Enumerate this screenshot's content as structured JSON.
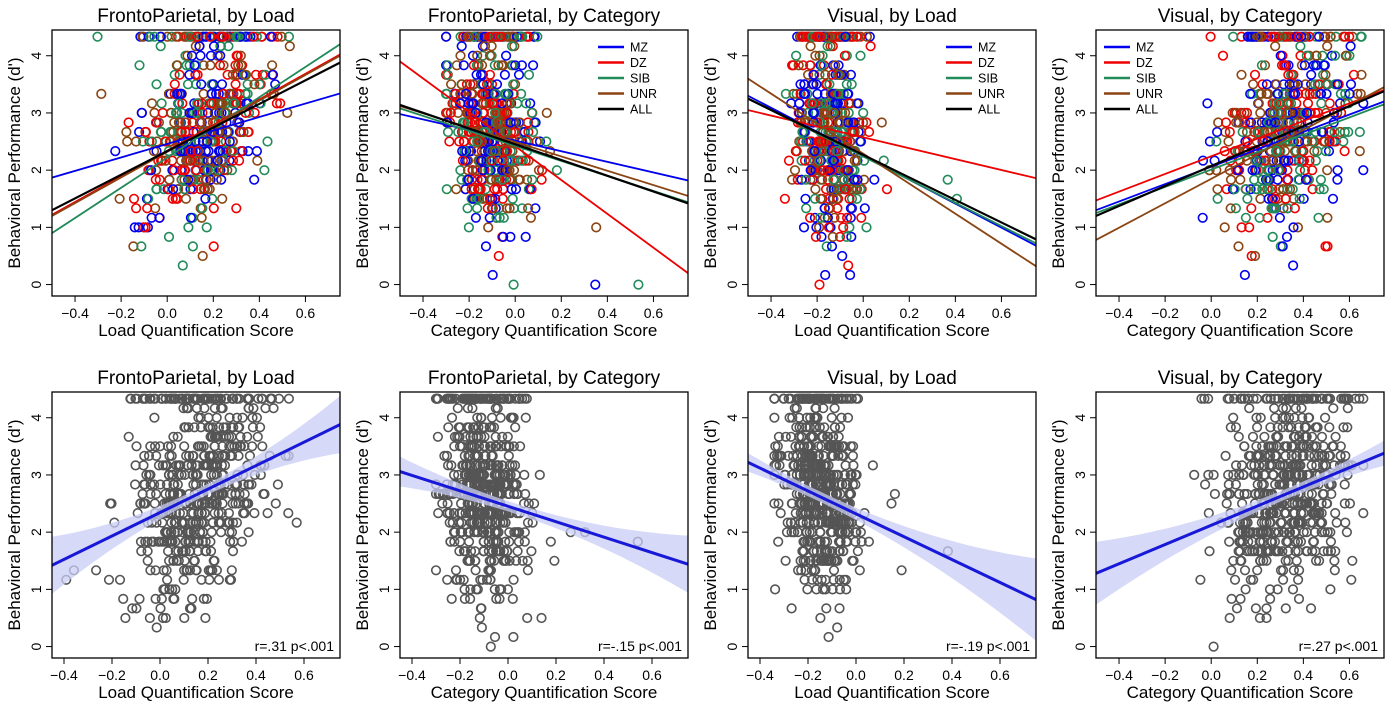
{
  "colors": {
    "MZ": "#0000ee",
    "DZ": "#ee0000",
    "SIB": "#228b5a",
    "UNR": "#8b4513",
    "ALL": "#000000",
    "points_gray": "#555555",
    "fit_line": "#1818d8",
    "ci_band": "#c8ccf4"
  },
  "chart_data": [
    {
      "type": "scatter",
      "row": "top",
      "title": "FrontoParietal, by Load",
      "xlabel": "Load Quantification Score",
      "ylabel": "Behavioral Performance (d')",
      "xlim": [
        -0.5,
        0.75
      ],
      "ylim": [
        -0.2,
        4.45
      ],
      "xticks": [
        -0.4,
        -0.2,
        0.0,
        0.2,
        0.4,
        0.6
      ],
      "yticks": [
        0,
        1,
        2,
        3,
        4
      ],
      "xcenter": 0.15,
      "xspread": 0.14,
      "xmin": -0.42,
      "xmax": 0.58,
      "legend": null,
      "series": [
        {
          "name": "MZ",
          "line": [
            [
              -0.5,
              1.87
            ],
            [
              0.75,
              3.34
            ]
          ]
        },
        {
          "name": "DZ",
          "line": [
            [
              -0.5,
              1.22
            ],
            [
              0.75,
              4.02
            ]
          ]
        },
        {
          "name": "SIB",
          "line": [
            [
              -0.5,
              0.9
            ],
            [
              0.75,
              4.2
            ]
          ]
        },
        {
          "name": "UNR",
          "line": [
            [
              -0.5,
              1.2
            ],
            [
              0.75,
              4.0
            ]
          ]
        },
        {
          "name": "ALL",
          "line": [
            [
              -0.5,
              1.3
            ],
            [
              0.75,
              3.88
            ]
          ]
        }
      ]
    },
    {
      "type": "scatter",
      "row": "top",
      "title": "FrontoParietal, by Category",
      "xlabel": "Category Quantification Score",
      "ylabel": "Behavioral Performance (d')",
      "xlim": [
        -0.5,
        0.75
      ],
      "ylim": [
        -0.2,
        4.45
      ],
      "xticks": [
        -0.4,
        -0.2,
        0.0,
        0.2,
        0.4,
        0.6
      ],
      "yticks": [
        0,
        1,
        2,
        3,
        4
      ],
      "xcenter": -0.1,
      "xspread": 0.09,
      "xmin": -0.3,
      "xmax": 0.57,
      "legend": {
        "position": "top-right",
        "entries": [
          "MZ",
          "DZ",
          "SIB",
          "UNR",
          "ALL"
        ]
      },
      "series": [
        {
          "name": "MZ",
          "line": [
            [
              -0.5,
              2.98
            ],
            [
              0.75,
              1.82
            ]
          ]
        },
        {
          "name": "DZ",
          "line": [
            [
              -0.5,
              3.9
            ],
            [
              0.75,
              0.2
            ]
          ]
        },
        {
          "name": "SIB",
          "line": [
            [
              -0.5,
              3.08
            ],
            [
              0.75,
              1.44
            ]
          ]
        },
        {
          "name": "UNR",
          "line": [
            [
              -0.5,
              3.12
            ],
            [
              0.75,
              1.55
            ]
          ]
        },
        {
          "name": "ALL",
          "line": [
            [
              -0.5,
              3.14
            ],
            [
              0.75,
              1.42
            ]
          ]
        }
      ]
    },
    {
      "type": "scatter",
      "row": "top",
      "title": "Visual, by Load",
      "xlabel": "Load Quantification Score",
      "ylabel": "Behavioral Performance (d')",
      "xlim": [
        -0.5,
        0.75
      ],
      "ylim": [
        -0.2,
        4.45
      ],
      "xticks": [
        -0.4,
        -0.2,
        0.0,
        0.2,
        0.4,
        0.6
      ],
      "yticks": [
        0,
        1,
        2,
        3,
        4
      ],
      "xcenter": -0.15,
      "xspread": 0.08,
      "xmin": -0.34,
      "xmax": 0.42,
      "legend": {
        "position": "top-right",
        "entries": [
          "MZ",
          "DZ",
          "SIB",
          "UNR",
          "ALL"
        ]
      },
      "series": [
        {
          "name": "MZ",
          "line": [
            [
              -0.5,
              3.3
            ],
            [
              0.75,
              0.68
            ]
          ]
        },
        {
          "name": "DZ",
          "line": [
            [
              -0.5,
              3.05
            ],
            [
              0.75,
              1.86
            ]
          ]
        },
        {
          "name": "SIB",
          "line": [
            [
              -0.5,
              3.25
            ],
            [
              0.75,
              0.72
            ]
          ]
        },
        {
          "name": "UNR",
          "line": [
            [
              -0.5,
              3.6
            ],
            [
              0.75,
              0.32
            ]
          ]
        },
        {
          "name": "ALL",
          "line": [
            [
              -0.5,
              3.25
            ],
            [
              0.75,
              0.79
            ]
          ]
        }
      ]
    },
    {
      "type": "scatter",
      "row": "top",
      "title": "Visual, by Category",
      "xlabel": "Category Quantification Score",
      "ylabel": "Behavioral Performance (d')",
      "xlim": [
        -0.5,
        0.75
      ],
      "ylim": [
        -0.2,
        4.45
      ],
      "xticks": [
        -0.4,
        -0.2,
        0.0,
        0.2,
        0.4,
        0.6
      ],
      "yticks": [
        0,
        1,
        2,
        3,
        4
      ],
      "xcenter": 0.32,
      "xspread": 0.14,
      "xmin": -0.2,
      "xmax": 0.66,
      "legend": {
        "position": "top-left",
        "entries": [
          "MZ",
          "DZ",
          "SIB",
          "UNR",
          "ALL"
        ]
      },
      "series": [
        {
          "name": "MZ",
          "line": [
            [
              -0.5,
              1.3
            ],
            [
              0.75,
              3.2
            ]
          ]
        },
        {
          "name": "DZ",
          "line": [
            [
              -0.5,
              1.47
            ],
            [
              0.75,
              3.4
            ]
          ]
        },
        {
          "name": "SIB",
          "line": [
            [
              -0.5,
              1.25
            ],
            [
              0.75,
              3.15
            ]
          ]
        },
        {
          "name": "UNR",
          "line": [
            [
              -0.5,
              0.78
            ],
            [
              0.75,
              3.45
            ]
          ]
        },
        {
          "name": "ALL",
          "line": [
            [
              -0.5,
              1.2
            ],
            [
              0.75,
              3.38
            ]
          ]
        }
      ]
    },
    {
      "type": "scatter",
      "row": "bottom",
      "title": "FrontoParietal, by Load",
      "xlabel": "Load Quantification Score",
      "ylabel": "Behavioral Performance (d')",
      "xlim": [
        -0.45,
        0.75
      ],
      "ylim": [
        -0.2,
        4.45
      ],
      "xticks": [
        -0.4,
        -0.2,
        0.0,
        0.2,
        0.4,
        0.6
      ],
      "yticks": [
        0,
        1,
        2,
        3,
        4
      ],
      "xcenter": 0.15,
      "xspread": 0.14,
      "xmin": -0.42,
      "xmax": 0.58,
      "fit": {
        "line": [
          [
            -0.45,
            1.42
          ],
          [
            0.75,
            3.88
          ]
        ],
        "ci": [
          0.09,
          0.5,
          0.15,
          0.58
        ]
      },
      "stat_text": "r=.31 p<.001"
    },
    {
      "type": "scatter",
      "row": "bottom",
      "title": "FrontoParietal, by Category",
      "xlabel": "Category Quantification Score",
      "ylabel": "Behavioral Performance (d')",
      "xlim": [
        -0.45,
        0.75
      ],
      "ylim": [
        -0.2,
        4.45
      ],
      "xticks": [
        -0.4,
        -0.2,
        0.0,
        0.2,
        0.4,
        0.6
      ],
      "yticks": [
        0,
        1,
        2,
        3,
        4
      ],
      "xcenter": -0.1,
      "xspread": 0.09,
      "xmin": -0.3,
      "xmax": 0.57,
      "fit": {
        "line": [
          [
            -0.45,
            3.06
          ],
          [
            0.75,
            1.44
          ]
        ],
        "ci": [
          0.09,
          0.5,
          0.02,
          0.3
        ]
      },
      "stat_text": "r=-.15 p<.001"
    },
    {
      "type": "scatter",
      "row": "bottom",
      "title": "Visual, by Load",
      "xlabel": "Load Quantification Score",
      "ylabel": "Behavioral Performance (d')",
      "xlim": [
        -0.45,
        0.75
      ],
      "ylim": [
        -0.2,
        4.45
      ],
      "xticks": [
        -0.4,
        -0.2,
        0.0,
        0.2,
        0.4,
        0.6
      ],
      "yticks": [
        0,
        1,
        2,
        3,
        4
      ],
      "xcenter": -0.15,
      "xspread": 0.08,
      "xmin": -0.34,
      "xmax": 0.42,
      "fit": {
        "line": [
          [
            -0.45,
            3.22
          ],
          [
            0.75,
            0.82
          ]
        ],
        "ci": [
          0.09,
          0.72,
          -0.15,
          0.4
        ]
      },
      "stat_text": "r=-.19 p<.001"
    },
    {
      "type": "scatter",
      "row": "bottom",
      "title": "Visual, by Category",
      "xlabel": "Category Quantification Score",
      "ylabel": "Behavioral Performance (d')",
      "xlim": [
        -0.5,
        0.75
      ],
      "ylim": [
        -0.2,
        4.45
      ],
      "xticks": [
        -0.4,
        -0.2,
        0.0,
        0.2,
        0.4,
        0.6
      ],
      "yticks": [
        0,
        1,
        2,
        3,
        4
      ],
      "xcenter": 0.32,
      "xspread": 0.14,
      "xmin": -0.2,
      "xmax": 0.66,
      "fit": {
        "line": [
          [
            -0.5,
            1.28
          ],
          [
            0.75,
            3.38
          ]
        ],
        "ci": [
          0.09,
          0.55,
          0.32,
          0.45
        ]
      },
      "stat_text": "r=.27 p<.001"
    }
  ]
}
